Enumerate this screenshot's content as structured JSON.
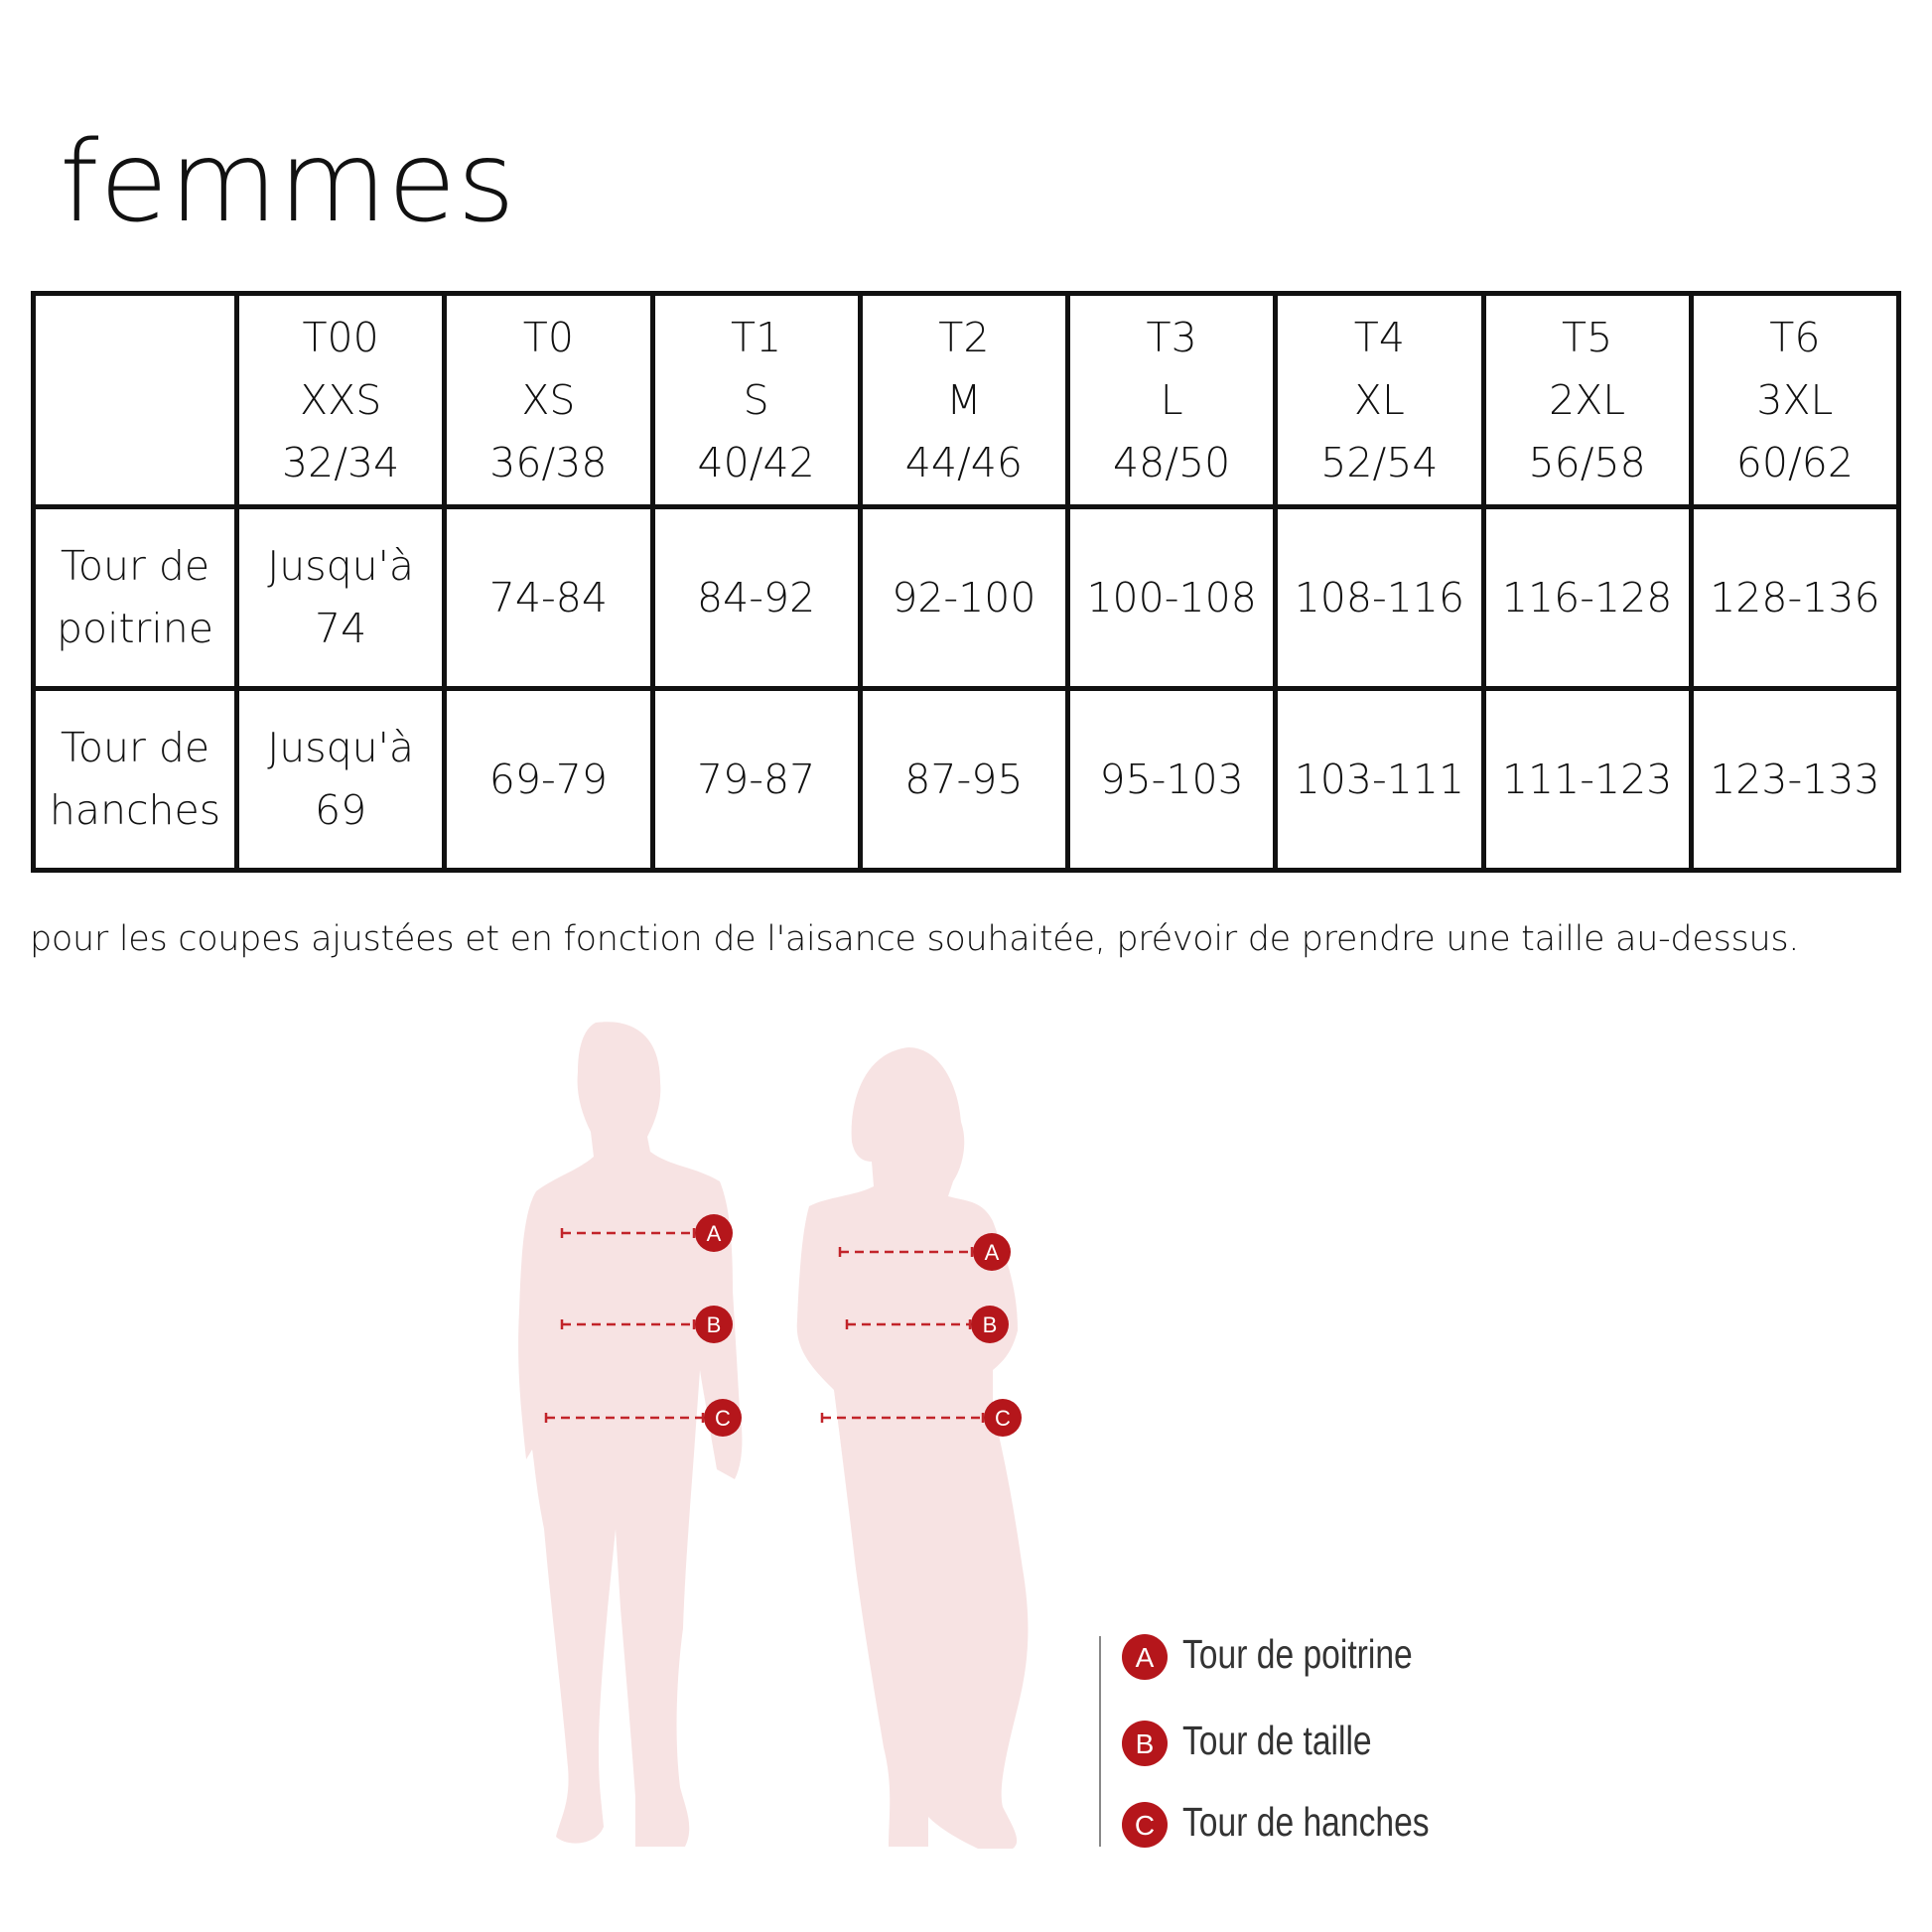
{
  "title": "femmes",
  "table": {
    "headers": [
      {
        "t": "T00",
        "int": "XXS",
        "fr": "32/34"
      },
      {
        "t": "T0",
        "int": "XS",
        "fr": "36/38"
      },
      {
        "t": "T1",
        "int": "S",
        "fr": "40/42"
      },
      {
        "t": "T2",
        "int": "M",
        "fr": "44/46"
      },
      {
        "t": "T3",
        "int": "L",
        "fr": "48/50"
      },
      {
        "t": "T4",
        "int": "XL",
        "fr": "52/54"
      },
      {
        "t": "T5",
        "int": "2XL",
        "fr": "56/58"
      },
      {
        "t": "T6",
        "int": "3XL",
        "fr": "60/62"
      }
    ],
    "rows": [
      {
        "label1": "Tour de",
        "label2": "poitrine",
        "first1": "Jusqu'à",
        "first2": "74",
        "values": [
          "74-84",
          "84-92",
          "92-100",
          "100-108",
          "108-116",
          "116-128",
          "128-136"
        ]
      },
      {
        "label1": "Tour de",
        "label2": "hanches",
        "first1": "Jusqu'à",
        "first2": "69",
        "values": [
          "69-79",
          "79-87",
          "87-95",
          "95-103",
          "103-111",
          "111-123",
          "123-133"
        ]
      }
    ]
  },
  "note": "pour les coupes ajustées et en fonction de l'aisance souhaitée, prévoir de prendre une taille au-dessus.",
  "figure": {
    "markers": [
      "A",
      "B",
      "C"
    ],
    "legend": [
      {
        "letter": "A",
        "label": "Tour de poitrine"
      },
      {
        "letter": "B",
        "label": "Tour de taille"
      },
      {
        "letter": "C",
        "label": "Tour de hanches"
      }
    ],
    "colors": {
      "accent": "#b5161b",
      "silhouette": "#f7e3e3"
    }
  }
}
